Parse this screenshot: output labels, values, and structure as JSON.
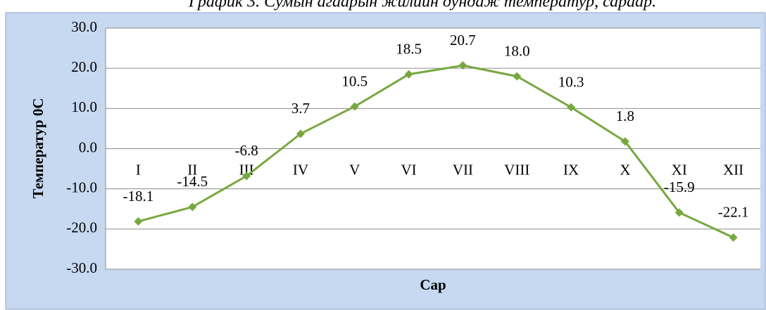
{
  "chart_data": {
    "type": "line",
    "title": "График 3. Сумын агаарын жилийн дундаж температур, сараар.",
    "x_label": "Сар",
    "y_label": "Температур 0С",
    "categories": [
      "I",
      "II",
      "III",
      "IV",
      "V",
      "VI",
      "VII",
      "VIII",
      "IX",
      "X",
      "XI",
      "XII"
    ],
    "series": [
      {
        "name": "Температур",
        "color": "#77a83f",
        "values": [
          -18.1,
          -14.5,
          -6.8,
          3.7,
          10.5,
          18.5,
          20.7,
          18.0,
          10.3,
          1.8,
          -15.9,
          -22.1
        ],
        "value_labels": [
          "-18.1",
          "-14.5",
          "-6.8",
          "3.7",
          "10.5",
          "18.5",
          "20.7",
          "18.0",
          "10.3",
          "1.8",
          "-15.9",
          "-22.1"
        ]
      }
    ],
    "ylim": [
      -30,
      30
    ],
    "yticks": [
      {
        "value": -30,
        "label": "-30.0"
      },
      {
        "value": -20,
        "label": "-20.0"
      },
      {
        "value": -10,
        "label": "-10.0"
      },
      {
        "value": 0,
        "label": "0.0"
      },
      {
        "value": 10,
        "label": "10.0"
      },
      {
        "value": 20,
        "label": "20.0"
      },
      {
        "value": 30,
        "label": "30.0"
      }
    ],
    "grid": true
  }
}
